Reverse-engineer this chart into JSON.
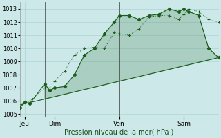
{
  "background_color": "#cce8e8",
  "grid_color": "#aad4d4",
  "line_color": "#1a5c1a",
  "ylabel": "Pression niveau de la mer( hPa )",
  "ylim": [
    1004.8,
    1013.5
  ],
  "yticks": [
    1005,
    1006,
    1007,
    1008,
    1009,
    1010,
    1011,
    1012,
    1013
  ],
  "xlim": [
    0,
    20
  ],
  "day_labels": [
    "Jeu",
    "Dim",
    "Ven",
    "Sam"
  ],
  "day_positions": [
    0.5,
    3.5,
    10.0,
    16.5
  ],
  "vline_positions": [
    2.5,
    10.0,
    16.5
  ],
  "series1_x": [
    0.0,
    0.5,
    1.0,
    2.5,
    3.0,
    3.5,
    4.5,
    5.5,
    6.5,
    7.5,
    8.5,
    9.5,
    10.0,
    11.0,
    12.0,
    13.0,
    14.0,
    15.0,
    16.0,
    16.5,
    17.0,
    18.0,
    19.0,
    20.0
  ],
  "series1_y": [
    1005.5,
    1005.9,
    1006.0,
    1007.0,
    1007.0,
    1007.5,
    1008.3,
    1009.5,
    1010.0,
    1010.1,
    1010.0,
    1011.2,
    1011.1,
    1011.0,
    1011.5,
    1012.4,
    1012.5,
    1012.5,
    1012.2,
    1012.6,
    1013.0,
    1012.8,
    1012.2,
    1012.0
  ],
  "series2_x": [
    0.0,
    0.5,
    1.0,
    2.5,
    3.0,
    3.5,
    4.5,
    5.5,
    6.5,
    7.5,
    8.5,
    9.5,
    10.0,
    11.0,
    12.0,
    13.0,
    14.0,
    15.0,
    16.0,
    16.5,
    17.0,
    18.0,
    19.0,
    20.0
  ],
  "series2_y": [
    1005.5,
    1005.9,
    1005.8,
    1007.3,
    1006.8,
    1007.0,
    1007.1,
    1008.0,
    1009.5,
    1010.0,
    1011.1,
    1012.0,
    1012.5,
    1012.5,
    1012.2,
    1012.5,
    1012.6,
    1013.0,
    1012.8,
    1013.0,
    1012.8,
    1012.5,
    1010.0,
    1009.3
  ],
  "series3_x": [
    0.0,
    20.0
  ],
  "series3_y": [
    1005.7,
    1009.3
  ]
}
